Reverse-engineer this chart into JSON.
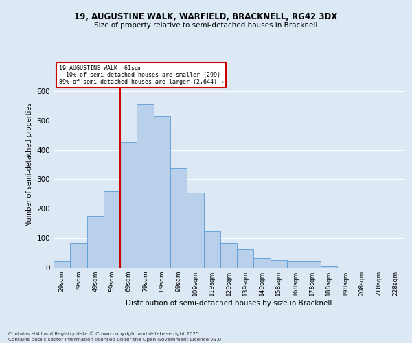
{
  "title1": "19, AUGUSTINE WALK, WARFIELD, BRACKNELL, RG42 3DX",
  "title2": "Size of property relative to semi-detached houses in Bracknell",
  "xlabel": "Distribution of semi-detached houses by size in Bracknell",
  "ylabel": "Number of semi-detached properties",
  "categories": [
    "29sqm",
    "39sqm",
    "49sqm",
    "59sqm",
    "69sqm",
    "79sqm",
    "89sqm",
    "99sqm",
    "109sqm",
    "119sqm",
    "129sqm",
    "139sqm",
    "149sqm",
    "158sqm",
    "168sqm",
    "178sqm",
    "188sqm",
    "198sqm",
    "208sqm",
    "218sqm",
    "228sqm"
  ],
  "values": [
    20,
    83,
    176,
    258,
    428,
    556,
    516,
    338,
    255,
    124,
    85,
    62,
    32,
    25,
    22,
    20,
    5,
    0,
    0,
    0,
    0
  ],
  "bar_color": "#b8d0ea",
  "bar_edge_color": "#5b9bd5",
  "bar_linewidth": 0.6,
  "vline_color": "#cc0000",
  "annotation_title": "19 AUGUSTINE WALK: 61sqm",
  "annotation_line1": "← 10% of semi-detached houses are smaller (299)",
  "annotation_line2": "89% of semi-detached houses are larger (2,644) →",
  "annotation_box_edge_color": "#cc0000",
  "ylim": [
    0,
    700
  ],
  "yticks": [
    0,
    100,
    200,
    300,
    400,
    500,
    600
  ],
  "bg_color": "#dce9f5",
  "grid_color": "#ffffff",
  "footer1": "Contains HM Land Registry data © Crown copyright and database right 2025.",
  "footer2": "Contains public sector information licensed under the Open Government Licence v3.0."
}
